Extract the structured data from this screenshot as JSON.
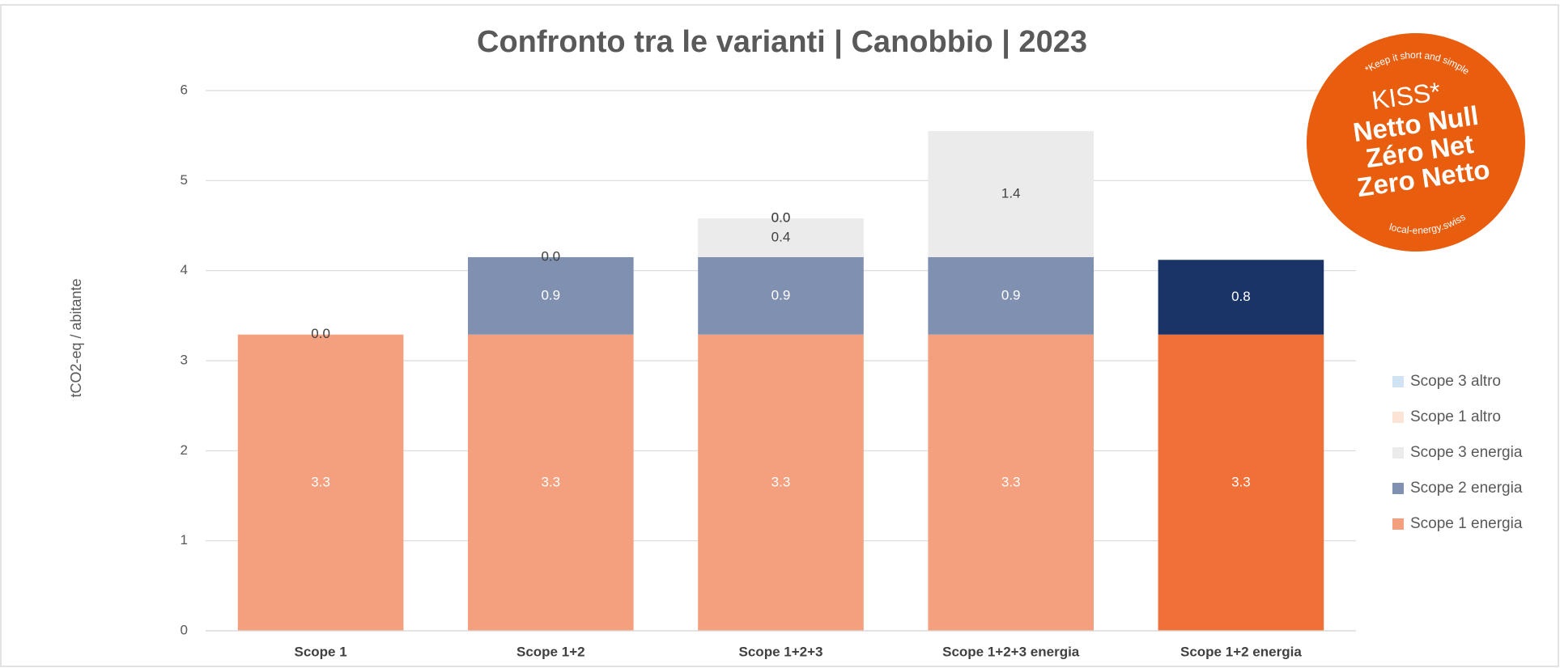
{
  "chart_data": {
    "type": "stacked_bar",
    "title": "Confronto tra le varianti | Canobbio | 2023",
    "y_label": "tCO2-eq / abitante",
    "categories": [
      "Scope 1",
      "Scope 1+2",
      "Scope 1+2+3",
      "Scope 1+2+3 energia",
      "Scope 1+2 energia"
    ],
    "ylim": [
      0,
      6
    ],
    "yticks": [
      0,
      1,
      2,
      3,
      4,
      5,
      6
    ],
    "grid": true,
    "legend": "right",
    "series": [
      {
        "name": "Scope 1 energia",
        "color": "#f4a07e",
        "colors": [
          "#f4a07e",
          "#f4a07e",
          "#f4a07e",
          "#f4a07e",
          "#f07038"
        ],
        "label_color": "#ffffff",
        "values": [
          3.29,
          3.29,
          3.29,
          3.29,
          3.29
        ],
        "value_labels": [
          "3.3",
          "3.3",
          "3.3",
          "3.3",
          "3.3"
        ]
      },
      {
        "name": "Scope 2 energia",
        "color": "#8090b0",
        "colors": [
          "#8090b0",
          "#8090b0",
          "#8090b0",
          "#8090b0",
          "#1b3468"
        ],
        "label_color": "#ffffff",
        "values": [
          null,
          0.86,
          0.86,
          0.86,
          0.83
        ],
        "value_labels": [
          null,
          "0.9",
          "0.9",
          "0.9",
          "0.8"
        ]
      },
      {
        "name": "Scope 3 energia",
        "color": "#ebebeb",
        "colors": [
          "#ebebeb",
          "#ebebeb",
          "#ebebeb",
          "#ebebeb",
          "#ebebeb"
        ],
        "label_color": "#404040",
        "values": [
          null,
          null,
          0.43,
          1.4,
          null
        ],
        "value_labels": [
          null,
          null,
          "0.4",
          "1.4",
          null
        ]
      },
      {
        "name": "Scope 1 altro",
        "color": "#fbe3d6",
        "colors": [
          "#fbe3d6",
          "#fbe3d6",
          "#fbe3d6",
          "#fbe3d6",
          "#fbe3d6"
        ],
        "label_color": "#404040",
        "values": [
          0,
          0,
          0,
          null,
          null
        ],
        "value_labels": [
          "0.0",
          "0.0",
          "0.0",
          null,
          null
        ]
      },
      {
        "name": "Scope 3 altro",
        "color": "#cfe3f5",
        "colors": [
          "#cfe3f5",
          "#cfe3f5",
          "#cfe3f5",
          "#cfe3f5",
          "#cfe3f5"
        ],
        "label_color": "#404040",
        "values": [
          null,
          null,
          0,
          null,
          null
        ],
        "value_labels": [
          null,
          null,
          "0.0",
          null,
          null
        ]
      }
    ]
  },
  "badge": {
    "top_arc": "*Keep it short and simple",
    "kiss": "KISS*",
    "lines": [
      "Netto Null",
      "Zéro Net",
      "Zero Netto"
    ],
    "bottom_arc": "local-energy.swiss"
  }
}
